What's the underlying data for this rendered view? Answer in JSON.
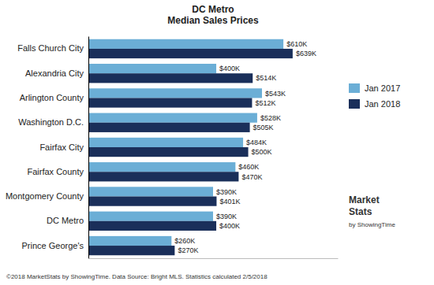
{
  "chart_data": {
    "type": "bar",
    "orientation": "horizontal",
    "title": "DC Metro\nMedian Sales Prices",
    "categories": [
      "Prince George's",
      "DC Metro",
      "Montgomery County",
      "Fairfax County",
      "Fairfax    City",
      "Washington D.C.",
      "Arlington County",
      "Alexandria City",
      "Falls Church City"
    ],
    "series": [
      {
        "name": "Jan 2017",
        "color": "#6baed6",
        "values": [
          260,
          390,
          390,
          460,
          484,
          528,
          543,
          400,
          610
        ],
        "value_labels": [
          "$260K",
          "$390K",
          "$390K",
          "$460K",
          "$484K",
          "$528K",
          "$543K",
          "$400K",
          "$610K"
        ]
      },
      {
        "name": "Jan 2018",
        "color": "#1a2f5a",
        "values": [
          270,
          400,
          401,
          470,
          500,
          505,
          512,
          514,
          639
        ],
        "value_labels": [
          "$270K",
          "$400K",
          "$401K",
          "$470K",
          "$500K",
          "$505K",
          "$512K",
          "$514K",
          "$639K"
        ]
      }
    ],
    "xlim": [
      0,
      780
    ],
    "data_labels": true,
    "tick_labels": "y",
    "legend": "right",
    "grid": false,
    "annotations": [
      "©2018 MarketStats by ShowingTime. Data Source: Bright MLS. Statistics calculated 2/5/2018",
      "Market",
      "Stats",
      "by ShowingTime"
    ]
  }
}
